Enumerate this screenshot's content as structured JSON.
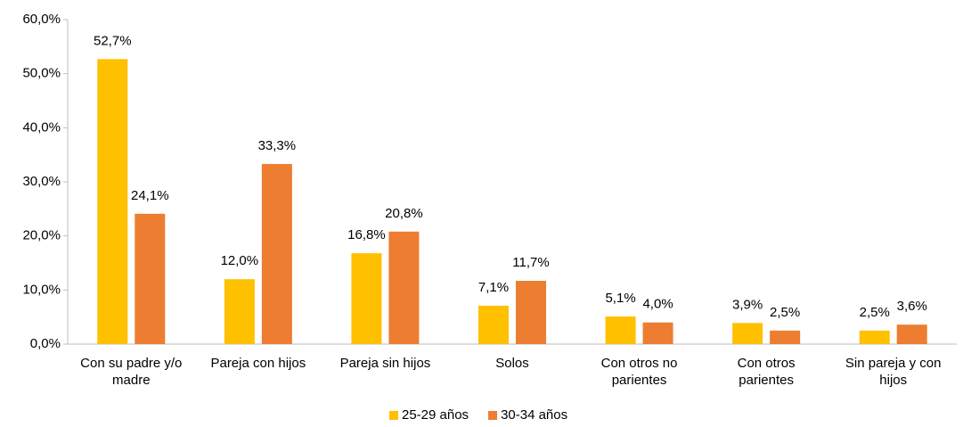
{
  "chart_data": {
    "type": "bar",
    "categories": [
      "Con su padre y/o madre",
      "Pareja con hijos",
      "Pareja sin hijos",
      "Solos",
      "Con otros no parientes",
      "Con otros parientes",
      "Sin pareja y con hijos"
    ],
    "series": [
      {
        "name": "25-29 años",
        "color": "#ffc000",
        "values": [
          52.7,
          12.0,
          16.8,
          7.1,
          5.1,
          3.9,
          2.5
        ],
        "value_labels": [
          "52,7%",
          "12,0%",
          "16,8%",
          "7,1%",
          "5,1%",
          "3,9%",
          "2,5%"
        ]
      },
      {
        "name": "30-34 años",
        "color": "#ed7d31",
        "values": [
          24.1,
          33.3,
          20.8,
          11.7,
          4.0,
          2.5,
          3.6
        ],
        "value_labels": [
          "24,1%",
          "33,3%",
          "20,8%",
          "11,7%",
          "4,0%",
          "2,5%",
          "3,6%"
        ]
      }
    ],
    "ylim": [
      0,
      60
    ],
    "yticks": [
      {
        "value": 0,
        "label": "0,0%"
      },
      {
        "value": 10,
        "label": "10,0%"
      },
      {
        "value": 20,
        "label": "20,0%"
      },
      {
        "value": 30,
        "label": "30,0%"
      },
      {
        "value": 40,
        "label": "40,0%"
      },
      {
        "value": 50,
        "label": "50,0%"
      },
      {
        "value": 60,
        "label": "60,0%"
      }
    ],
    "legend": "bottom"
  }
}
